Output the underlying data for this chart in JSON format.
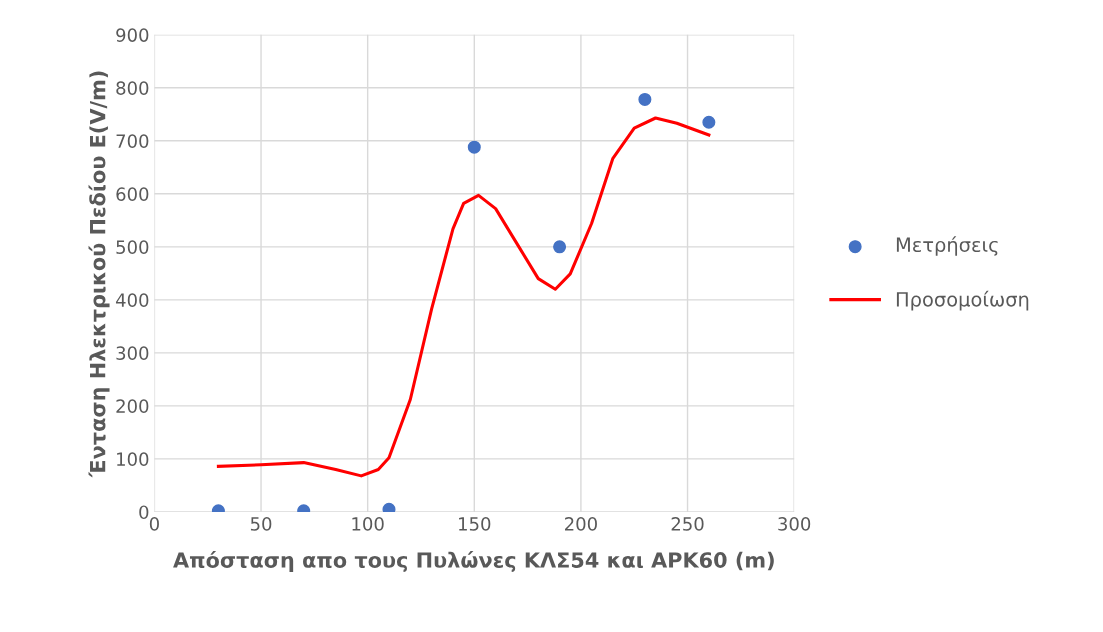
{
  "chart_data": {
    "type": "scatter",
    "xlabel": "Απόσταση απο τους Πυλώνες ΚΛΣ54 και ΑΡΚ60 (m)",
    "ylabel": "Ένταση Ηλεκτρικού Πεδίου E(V/m)",
    "xlim": [
      0,
      300
    ],
    "xticks": [
      0,
      50,
      100,
      150,
      200,
      250,
      300
    ],
    "ylim": [
      0,
      900
    ],
    "yticks": [
      0,
      100,
      200,
      300,
      400,
      500,
      600,
      700,
      800,
      900
    ],
    "grid": true,
    "legend": "right",
    "series": [
      {
        "name": "Μετρήσεις",
        "marker": "circle",
        "color": "#4472c4",
        "x": [
          30,
          70,
          110,
          150,
          190,
          230,
          260
        ],
        "values": [
          2,
          2,
          5,
          688,
          500,
          778,
          735
        ]
      },
      {
        "name": "Προσομοίωση",
        "type": "line",
        "marker": "none",
        "line_style": "solid",
        "color": "#ff0000",
        "x": [
          30,
          50,
          70,
          85,
          97,
          105,
          110,
          120,
          130,
          140,
          145,
          152,
          160,
          170,
          180,
          188,
          195,
          205,
          215,
          225,
          235,
          245,
          260
        ],
        "values": [
          86,
          89,
          93,
          80,
          68,
          80,
          102,
          212,
          383,
          534,
          582,
          597,
          572,
          506,
          440,
          420,
          449,
          544,
          667,
          724,
          743,
          733,
          711
        ]
      }
    ]
  }
}
